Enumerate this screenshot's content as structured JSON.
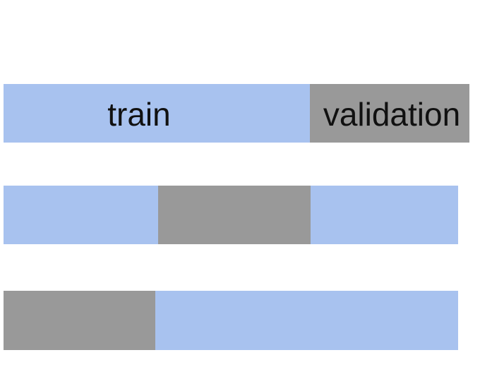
{
  "colors": {
    "train": "#a8c2ef",
    "validation": "#999999",
    "text": "#111111"
  },
  "rows": [
    {
      "segments": [
        {
          "role": "train",
          "label": "train"
        },
        {
          "role": "validation",
          "label": "validation"
        }
      ]
    },
    {
      "segments": [
        {
          "role": "train",
          "label": ""
        },
        {
          "role": "validation",
          "label": ""
        },
        {
          "role": "train",
          "label": ""
        }
      ]
    },
    {
      "segments": [
        {
          "role": "validation",
          "label": ""
        },
        {
          "role": "train",
          "label": ""
        }
      ]
    }
  ]
}
